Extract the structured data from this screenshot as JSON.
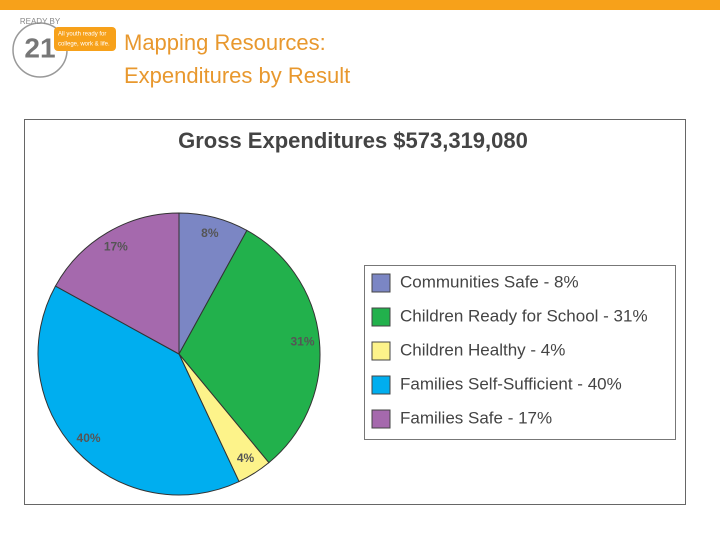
{
  "slide": {
    "title_lines": [
      "Mapping Resources:",
      "Expenditures by Result"
    ]
  },
  "logo": {
    "arc_text": "READY BY",
    "number": "21",
    "tagline_lines": [
      "All youth ready for",
      "college, work & life."
    ]
  },
  "chart_data": {
    "type": "pie",
    "title": "Gross Expenditures $573,319,080",
    "categories": [
      "Communities Safe - 8%",
      "Children Ready for School - 31%",
      "Children Healthy - 4%",
      "Families Self-Sufficient - 40%",
      "Families Safe - 17%"
    ],
    "values": [
      8,
      31,
      4,
      40,
      17
    ],
    "value_labels": [
      "8%",
      "31%",
      "4%",
      "40%",
      "17%"
    ],
    "colors": [
      "#7b86c4",
      "#22b14c",
      "#fdf38a",
      "#00aeef",
      "#a569ad"
    ],
    "legend": "right"
  }
}
